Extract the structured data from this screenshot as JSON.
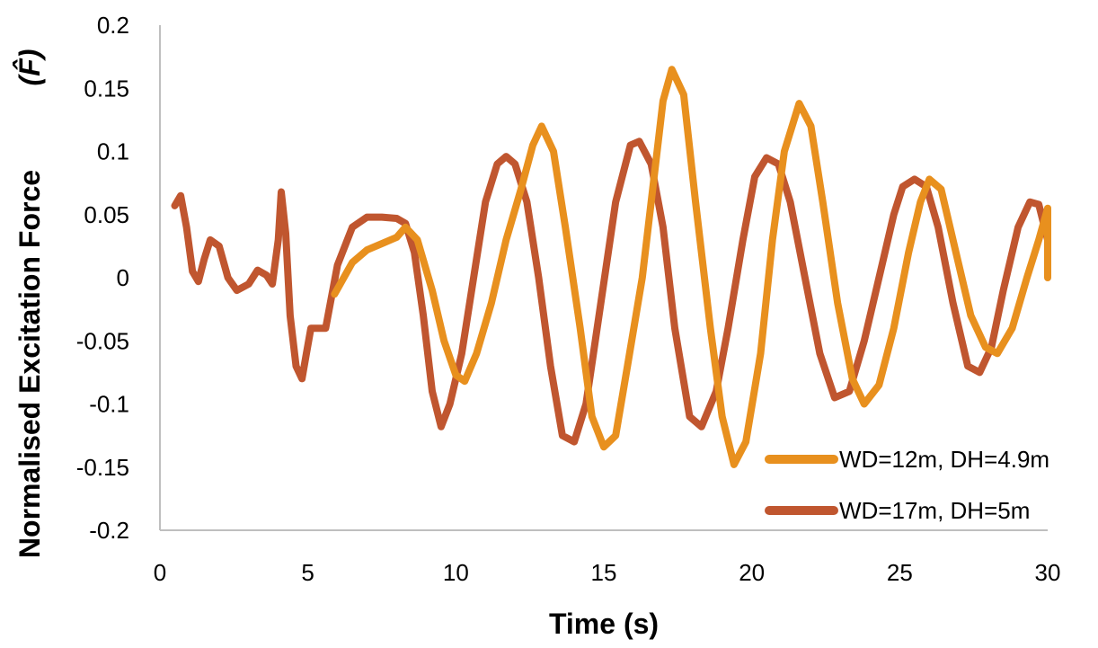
{
  "chart_data": {
    "type": "line",
    "title": "",
    "xlabel": "Time (s)",
    "ylabel": "Normalised Excitation Force",
    "ylabel_symbol": "(F̂)",
    "xlim": [
      0,
      30
    ],
    "ylim": [
      -0.2,
      0.2
    ],
    "xticks": [
      0,
      5,
      10,
      15,
      20,
      25,
      30
    ],
    "xtick_labels": [
      "0",
      "5",
      "10",
      "15",
      "20",
      "25",
      "30"
    ],
    "yticks": [
      0.2,
      0.15,
      0.1,
      0.05,
      0,
      -0.05,
      -0.1,
      -0.15,
      -0.2
    ],
    "ytick_labels": [
      "0.2",
      "0.15",
      "0.1",
      "0.05",
      "0",
      "-0.05",
      "-0.1",
      "-0.15",
      "-0.2"
    ],
    "grid": false,
    "legend_position": "bottom-right",
    "series": [
      {
        "name": "WD=12m, DH=4.9m",
        "color": "#E8901E",
        "x": [
          5.9,
          6.5,
          7.0,
          7.5,
          8.0,
          8.3,
          8.7,
          9.2,
          9.6,
          10.0,
          10.3,
          10.7,
          11.2,
          11.7,
          12.2,
          12.6,
          12.9,
          13.3,
          13.7,
          14.2,
          14.6,
          15.0,
          15.4,
          15.8,
          16.3,
          16.7,
          17.0,
          17.3,
          17.7,
          18.1,
          18.6,
          19.0,
          19.4,
          19.8,
          20.3,
          20.7,
          21.1,
          21.6,
          22.0,
          22.4,
          22.9,
          23.4,
          23.8,
          24.3,
          24.8,
          25.3,
          25.7,
          26.0,
          26.4,
          26.9,
          27.4,
          27.9,
          28.3,
          28.8,
          29.3,
          29.7,
          30.0,
          30.0
        ],
        "y": [
          -0.013,
          0.012,
          0.022,
          0.027,
          0.032,
          0.04,
          0.03,
          -0.01,
          -0.05,
          -0.077,
          -0.082,
          -0.06,
          -0.02,
          0.03,
          0.07,
          0.105,
          0.12,
          0.1,
          0.04,
          -0.04,
          -0.11,
          -0.134,
          -0.125,
          -0.07,
          0.0,
          0.08,
          0.14,
          0.165,
          0.145,
          0.06,
          -0.04,
          -0.11,
          -0.148,
          -0.13,
          -0.06,
          0.03,
          0.1,
          0.138,
          0.12,
          0.06,
          -0.02,
          -0.08,
          -0.1,
          -0.085,
          -0.04,
          0.02,
          0.06,
          0.078,
          0.07,
          0.02,
          -0.03,
          -0.055,
          -0.06,
          -0.04,
          0.0,
          0.03,
          0.055,
          0.0
        ]
      },
      {
        "name": "WD=17m, DH=5m",
        "color": "#C0562F",
        "x": [
          0.5,
          0.7,
          0.9,
          1.1,
          1.3,
          1.5,
          1.7,
          2.0,
          2.3,
          2.6,
          3.0,
          3.3,
          3.6,
          3.8,
          4.0,
          4.1,
          4.25,
          4.4,
          4.6,
          4.8,
          4.95,
          5.1,
          5.3,
          5.6,
          6.0,
          6.5,
          7.0,
          7.5,
          8.0,
          8.3,
          8.6,
          8.9,
          9.2,
          9.5,
          9.8,
          10.2,
          10.6,
          11.0,
          11.4,
          11.7,
          12.0,
          12.4,
          12.8,
          13.2,
          13.6,
          14.0,
          14.4,
          14.9,
          15.4,
          15.9,
          16.2,
          16.6,
          17.0,
          17.4,
          17.9,
          18.3,
          18.8,
          19.2,
          19.7,
          20.1,
          20.5,
          20.9,
          21.3,
          21.8,
          22.3,
          22.8,
          23.3,
          23.8,
          24.3,
          24.8,
          25.1,
          25.5,
          25.9,
          26.3,
          26.8,
          27.3,
          27.7,
          28.1,
          28.5,
          29.0,
          29.4,
          29.7,
          30.0
        ],
        "y": [
          0.057,
          0.065,
          0.04,
          0.005,
          -0.003,
          0.015,
          0.03,
          0.025,
          0.0,
          -0.01,
          -0.005,
          0.006,
          0.002,
          -0.005,
          0.03,
          0.068,
          0.035,
          -0.03,
          -0.07,
          -0.08,
          -0.06,
          -0.04,
          -0.04,
          -0.04,
          0.01,
          0.04,
          0.048,
          0.048,
          0.047,
          0.043,
          0.02,
          -0.03,
          -0.09,
          -0.118,
          -0.1,
          -0.06,
          0.0,
          0.06,
          0.09,
          0.096,
          0.09,
          0.06,
          0.0,
          -0.07,
          -0.125,
          -0.13,
          -0.1,
          -0.02,
          0.06,
          0.105,
          0.108,
          0.09,
          0.04,
          -0.04,
          -0.11,
          -0.118,
          -0.09,
          -0.04,
          0.03,
          0.08,
          0.095,
          0.09,
          0.06,
          0.0,
          -0.06,
          -0.095,
          -0.09,
          -0.05,
          0.0,
          0.05,
          0.072,
          0.078,
          0.072,
          0.04,
          -0.02,
          -0.07,
          -0.075,
          -0.055,
          -0.01,
          0.04,
          0.06,
          0.058,
          0.03
        ]
      }
    ]
  }
}
